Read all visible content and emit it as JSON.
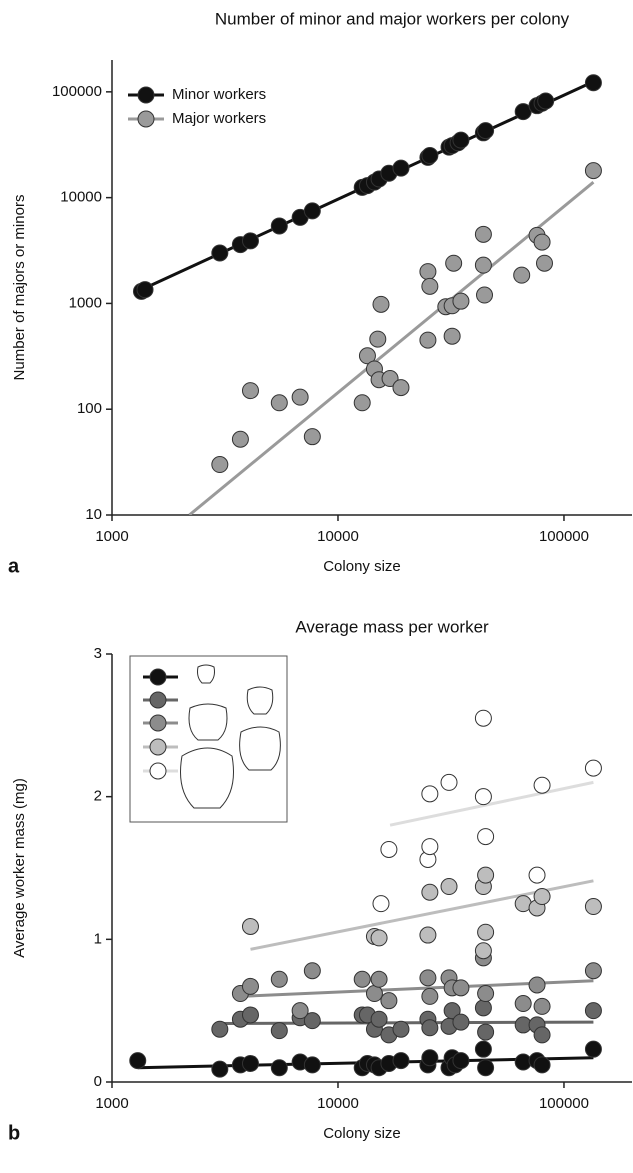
{
  "chart_data": [
    {
      "type": "scatter",
      "title": "Number of minor and major workers per colony",
      "panel_label": "a",
      "x_label": "Colony size",
      "y_label": "Number of majors or minors",
      "xscale": "log",
      "yscale": "log",
      "xlim": [
        1000,
        200000
      ],
      "ylim": [
        10,
        200000
      ],
      "xticks": [
        1000,
        10000,
        100000
      ],
      "yticks": [
        10,
        100,
        1000,
        10000,
        100000
      ],
      "legend": "upper-left",
      "series": [
        {
          "name": "Minor workers",
          "color": "#111111",
          "x": [
            1350,
            1400,
            3000,
            3700,
            4100,
            5500,
            6800,
            7700,
            12800,
            13500,
            14500,
            15200,
            16800,
            19000,
            25000,
            25500,
            31000,
            32000,
            34000,
            35000,
            44000,
            45000,
            66000,
            76000,
            80000,
            83000,
            135000
          ],
          "values": [
            1300,
            1350,
            3000,
            3600,
            3900,
            5400,
            6500,
            7500,
            12500,
            13000,
            14000,
            15000,
            17000,
            19000,
            24000,
            25000,
            30000,
            31000,
            33000,
            35000,
            41000,
            43000,
            65000,
            74000,
            78000,
            82000,
            122000
          ],
          "fit_x": [
            1300,
            135000
          ],
          "fit_y": [
            1300,
            125000
          ]
        },
        {
          "name": "Major workers",
          "color": "#9a9a9a",
          "x": [
            3000,
            3700,
            4100,
            5500,
            6800,
            7700,
            12800,
            13500,
            14500,
            15000,
            15200,
            15500,
            17000,
            19000,
            25000,
            25000,
            25500,
            30000,
            32000,
            32000,
            32500,
            35000,
            44000,
            44000,
            44500,
            65000,
            76000,
            80000,
            82000,
            135000
          ],
          "values": [
            30,
            52,
            150,
            115,
            130,
            55,
            115,
            320,
            240,
            460,
            190,
            980,
            195,
            160,
            450,
            2000,
            1450,
            930,
            950,
            490,
            2400,
            1050,
            4500,
            2300,
            1200,
            1850,
            4400,
            3800,
            2400,
            18000
          ],
          "fit_x": [
            2200,
            135000
          ],
          "fit_y": [
            10,
            14000
          ]
        }
      ]
    },
    {
      "type": "scatter",
      "title": "Average mass per worker",
      "panel_label": "b",
      "x_label": "Colony size",
      "y_label": "Average worker mass (mg)",
      "xscale": "log",
      "yscale": "linear",
      "xlim": [
        1000,
        200000
      ],
      "ylim": [
        0,
        3
      ],
      "xticks": [
        1000,
        10000,
        100000
      ],
      "yticks": [
        0,
        1,
        2,
        3
      ],
      "series": [
        {
          "color": "#111111",
          "x": [
            1300,
            3000,
            3700,
            4100,
            5500,
            6800,
            7700,
            12800,
            13500,
            14500,
            15200,
            16800,
            19000,
            25000,
            25500,
            31000,
            32000,
            33000,
            35000,
            44000,
            45000,
            66000,
            76000,
            80000,
            135000
          ],
          "values": [
            0.15,
            0.09,
            0.12,
            0.13,
            0.1,
            0.14,
            0.12,
            0.1,
            0.13,
            0.12,
            0.1,
            0.13,
            0.15,
            0.12,
            0.17,
            0.1,
            0.17,
            0.12,
            0.15,
            0.23,
            0.1,
            0.14,
            0.15,
            0.12,
            0.23
          ],
          "fit_x": [
            1300,
            135000
          ],
          "fit_y": [
            0.1,
            0.17
          ]
        },
        {
          "color": "#666666",
          "x": [
            3000,
            3700,
            4100,
            5500,
            6800,
            7700,
            12800,
            13500,
            14500,
            15200,
            16800,
            19000,
            25000,
            25500,
            31000,
            32000,
            35000,
            44000,
            45000,
            66000,
            76000,
            80000,
            135000
          ],
          "values": [
            0.37,
            0.44,
            0.47,
            0.36,
            0.45,
            0.43,
            0.47,
            0.47,
            0.37,
            0.44,
            0.33,
            0.37,
            0.44,
            0.38,
            0.39,
            0.5,
            0.42,
            0.52,
            0.35,
            0.4,
            0.4,
            0.33,
            0.5
          ],
          "fit_x": [
            3000,
            135000
          ],
          "fit_y": [
            0.41,
            0.42
          ]
        },
        {
          "color": "#8c8c8c",
          "x": [
            3700,
            4100,
            5500,
            6800,
            7700,
            12800,
            14500,
            15200,
            16800,
            25000,
            25500,
            31000,
            32000,
            35000,
            44000,
            45000,
            66000,
            76000,
            80000,
            135000
          ],
          "values": [
            0.62,
            0.67,
            0.72,
            0.5,
            0.78,
            0.72,
            0.62,
            0.72,
            0.57,
            0.73,
            0.6,
            0.73,
            0.66,
            0.66,
            0.87,
            0.62,
            0.55,
            0.68,
            0.53,
            0.78
          ],
          "fit_x": [
            3700,
            135000
          ],
          "fit_y": [
            0.6,
            0.71
          ]
        },
        {
          "color": "#bdbdbd",
          "x": [
            4100,
            14500,
            15200,
            25000,
            25500,
            31000,
            44000,
            44000,
            45000,
            45000,
            66000,
            76000,
            80000,
            135000
          ],
          "values": [
            1.09,
            1.02,
            1.01,
            1.03,
            1.33,
            1.37,
            0.92,
            1.37,
            1.45,
            1.05,
            1.25,
            1.22,
            1.3,
            1.23
          ],
          "fit_x": [
            4100,
            135000
          ],
          "fit_y": [
            0.93,
            1.41
          ]
        },
        {
          "color": "#ffffff",
          "x": [
            15500,
            16800,
            25000,
            25500,
            25500,
            31000,
            44000,
            44000,
            45000,
            76000,
            80000,
            135000
          ],
          "values": [
            1.25,
            1.63,
            1.56,
            1.65,
            2.02,
            2.1,
            2.55,
            2.0,
            1.72,
            1.45,
            2.08,
            2.2
          ],
          "fit_x": [
            17000,
            135000
          ],
          "fit_y": [
            1.8,
            2.1
          ]
        }
      ]
    }
  ]
}
